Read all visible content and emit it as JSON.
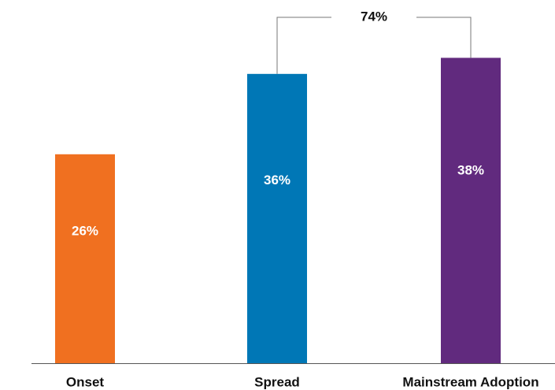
{
  "chart_data": {
    "type": "bar",
    "title": "",
    "xlabel": "",
    "ylabel": "",
    "categories": [
      "Onset",
      "Spread",
      "Mainstream Adoption"
    ],
    "values": [
      26,
      36,
      38
    ],
    "value_labels": [
      "26%",
      "36%",
      "38%"
    ],
    "colors": [
      "#f07020",
      "#0077b6",
      "#612a7e"
    ],
    "ylim": [
      0,
      40
    ],
    "grid": false,
    "legend": "none",
    "annotation": {
      "from_category": "Spread",
      "to_category": "Mainstream Adoption",
      "label": "74%"
    }
  }
}
